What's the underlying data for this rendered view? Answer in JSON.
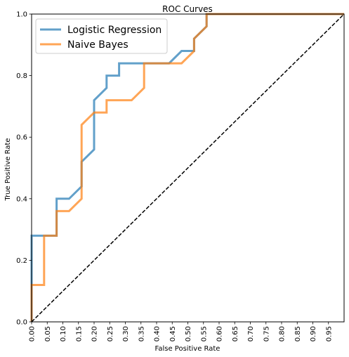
{
  "chart_data": {
    "type": "line",
    "title": "ROC Curves",
    "xlabel": "False Positive Rate",
    "ylabel": "True Positive Rate",
    "xlim": [
      0,
      1
    ],
    "ylim": [
      0,
      1
    ],
    "grid": false,
    "legend_position": "top-left",
    "x_ticks": [
      "0.00",
      "0.05",
      "0.10",
      "0.15",
      "0.20",
      "0.25",
      "0.30",
      "0.35",
      "0.40",
      "0.45",
      "0.50",
      "0.55",
      "0.60",
      "0.65",
      "0.70",
      "0.75",
      "0.80",
      "0.85",
      "0.90",
      "0.95"
    ],
    "y_ticks": [
      "0.0",
      "0.2",
      "0.4",
      "0.6",
      "0.8",
      "1.0"
    ],
    "series": [
      {
        "name": "Logistic Regression",
        "color": "#1f77b4",
        "x": [
          0.0,
          0.0,
          0.0,
          0.08,
          0.08,
          0.12,
          0.16,
          0.16,
          0.2,
          0.2,
          0.24,
          0.24,
          0.28,
          0.28,
          0.44,
          0.48,
          0.52,
          0.52,
          0.56,
          0.56,
          1.0
        ],
        "y": [
          0.0,
          0.12,
          0.28,
          0.28,
          0.4,
          0.4,
          0.44,
          0.52,
          0.56,
          0.72,
          0.76,
          0.8,
          0.8,
          0.84,
          0.84,
          0.88,
          0.88,
          0.92,
          0.96,
          1.0,
          1.0
        ]
      },
      {
        "name": "Naive Bayes",
        "color": "#ff7f0e",
        "x": [
          0.0,
          0.0,
          0.04,
          0.04,
          0.08,
          0.08,
          0.12,
          0.16,
          0.16,
          0.2,
          0.24,
          0.24,
          0.32,
          0.36,
          0.36,
          0.48,
          0.52,
          0.52,
          0.56,
          0.56,
          1.0
        ],
        "y": [
          0.0,
          0.12,
          0.12,
          0.28,
          0.28,
          0.36,
          0.36,
          0.4,
          0.64,
          0.68,
          0.68,
          0.72,
          0.72,
          0.76,
          0.84,
          0.84,
          0.88,
          0.92,
          0.96,
          1.0,
          1.0
        ]
      },
      {
        "name": "",
        "color": "#000000",
        "dashed": true,
        "x": [
          0,
          1
        ],
        "y": [
          0,
          1
        ]
      }
    ]
  }
}
